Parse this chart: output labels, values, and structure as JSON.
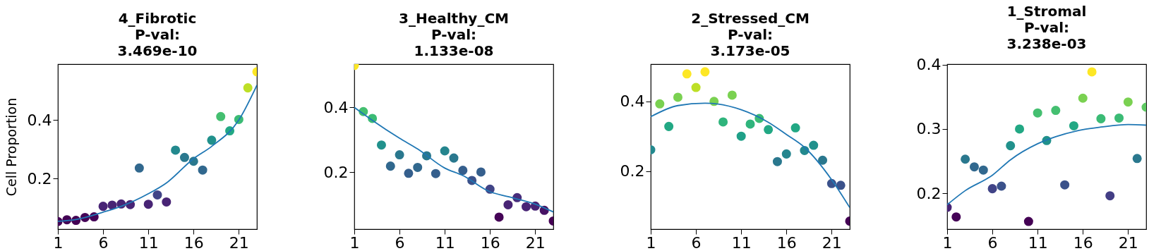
{
  "chart_data": [
    {
      "type": "scatter",
      "title": "4_Fibrotic\nP-val:\n3.469e-10",
      "ylabel": "Cell Proportion",
      "xlim": [
        1,
        23
      ],
      "xticks": [
        1,
        6,
        11,
        16,
        21
      ],
      "ylim": [
        0.027,
        0.591
      ],
      "yticks": [
        0.2,
        0.4
      ],
      "grid": false,
      "legend": false,
      "series": [
        {
          "marker": "circle",
          "x": [
            1,
            2,
            3,
            4,
            5,
            6,
            7,
            8,
            9,
            10,
            11,
            12,
            13,
            14,
            15,
            16,
            17,
            18,
            19,
            20,
            21,
            22,
            23
          ],
          "values": [
            0.053,
            0.059,
            0.057,
            0.067,
            0.069,
            0.105,
            0.109,
            0.113,
            0.111,
            0.236,
            0.112,
            0.144,
            0.12,
            0.297,
            0.272,
            0.259,
            0.229,
            0.331,
            0.412,
            0.363,
            0.402,
            0.51,
            0.565
          ],
          "colors": [
            "#440154",
            "#440154",
            "#440154",
            "#450457",
            "#450457",
            "#482475",
            "#482475",
            "#482475",
            "#482475",
            "#31688e",
            "#482475",
            "#414487",
            "#482475",
            "#23898e",
            "#2a788e",
            "#2a788e",
            "#31688e",
            "#21918c",
            "#44bf70",
            "#22a884",
            "#3bbb75",
            "#bddf26",
            "#fde725"
          ]
        },
        {
          "type": "line",
          "color": "#1f77b4",
          "x": [
            1,
            3,
            6,
            8,
            11,
            13,
            16,
            18,
            21,
            23
          ],
          "values": [
            0.054,
            0.06,
            0.085,
            0.105,
            0.148,
            0.185,
            0.268,
            0.31,
            0.4,
            0.519
          ]
        }
      ]
    },
    {
      "type": "scatter",
      "title": "3_Healthy_CM\nP-val:\n1.133e-08",
      "xlim": [
        1,
        23
      ],
      "xticks": [
        1,
        6,
        11,
        16,
        21
      ],
      "ylim": [
        0.025,
        0.533
      ],
      "yticks": [
        0.2,
        0.4
      ],
      "grid": false,
      "legend": false,
      "series": [
        {
          "marker": "circle",
          "x": [
            1,
            2,
            3,
            4,
            5,
            6,
            7,
            8,
            9,
            10,
            11,
            12,
            13,
            14,
            15,
            16,
            17,
            18,
            19,
            20,
            21,
            22,
            23
          ],
          "values": [
            0.529,
            0.387,
            0.366,
            0.284,
            0.219,
            0.254,
            0.197,
            0.215,
            0.251,
            0.196,
            0.266,
            0.244,
            0.206,
            0.175,
            0.201,
            0.148,
            0.062,
            0.1,
            0.122,
            0.094,
            0.096,
            0.083,
            0.05
          ],
          "colors": [
            "#fde725",
            "#44bf70",
            "#3bbb75",
            "#21918c",
            "#31688e",
            "#2a788e",
            "#355f8d",
            "#31688e",
            "#2a788e",
            "#355f8d",
            "#25858e",
            "#2a788e",
            "#355f8d",
            "#3b528b",
            "#355f8d",
            "#414487",
            "#450457",
            "#482475",
            "#472d7b",
            "#482475",
            "#482475",
            "#471365",
            "#440154"
          ]
        },
        {
          "type": "line",
          "color": "#1f77b4",
          "x": [
            1,
            3,
            6,
            8,
            11,
            13,
            16,
            18,
            21,
            23
          ],
          "values": [
            0.4,
            0.36,
            0.305,
            0.272,
            0.213,
            0.19,
            0.14,
            0.125,
            0.102,
            0.078
          ]
        }
      ]
    },
    {
      "type": "scatter",
      "title": "2_Stressed_CM\nP-val:\n3.173e-05",
      "xlim": [
        1,
        23
      ],
      "xticks": [
        1,
        6,
        11,
        16,
        21
      ],
      "ylim": [
        0.033,
        0.507
      ],
      "yticks": [
        0.2,
        0.4
      ],
      "grid": false,
      "legend": false,
      "series": [
        {
          "marker": "circle",
          "x": [
            1,
            2,
            3,
            4,
            5,
            6,
            7,
            8,
            9,
            10,
            11,
            12,
            13,
            14,
            15,
            16,
            17,
            18,
            19,
            20,
            21,
            22,
            23
          ],
          "values": [
            0.261,
            0.393,
            0.328,
            0.412,
            0.479,
            0.44,
            0.485,
            0.4,
            0.341,
            0.418,
            0.3,
            0.335,
            0.351,
            0.319,
            0.227,
            0.249,
            0.324,
            0.259,
            0.274,
            0.231,
            0.164,
            0.159,
            0.056
          ],
          "colors": [
            "#23898e",
            "#7ad151",
            "#22a884",
            "#7ad151",
            "#fde725",
            "#bddf26",
            "#fde725",
            "#7ad151",
            "#2fb47c",
            "#7ad151",
            "#1fa088",
            "#2fb47c",
            "#3bbb75",
            "#22a884",
            "#2a788e",
            "#25858e",
            "#22a884",
            "#23898e",
            "#21918c",
            "#2a788e",
            "#3b528b",
            "#3b528b",
            "#440154"
          ]
        },
        {
          "type": "line",
          "color": "#1f77b4",
          "x": [
            1,
            4,
            7,
            11,
            14,
            16,
            18,
            21,
            23
          ],
          "values": [
            0.356,
            0.388,
            0.395,
            0.376,
            0.34,
            0.305,
            0.268,
            0.175,
            0.095
          ]
        }
      ]
    },
    {
      "type": "scatter",
      "title": "1_Stromal\nP-val:\n3.238e-03",
      "xlim": [
        1,
        23
      ],
      "xticks": [
        1,
        6,
        11,
        16,
        21
      ],
      "ylim": [
        0.144,
        0.401
      ],
      "yticks": [
        0.2,
        0.3,
        0.4
      ],
      "grid": false,
      "legend": false,
      "series": [
        {
          "marker": "circle",
          "x": [
            1,
            2,
            3,
            4,
            5,
            6,
            7,
            8,
            9,
            10,
            11,
            12,
            13,
            14,
            15,
            16,
            17,
            18,
            19,
            20,
            21,
            22,
            23
          ],
          "values": [
            0.178,
            0.163,
            0.253,
            0.241,
            0.236,
            0.207,
            0.211,
            0.274,
            0.3,
            0.156,
            0.325,
            0.282,
            0.329,
            0.213,
            0.305,
            0.348,
            0.389,
            0.316,
            0.196,
            0.317,
            0.342,
            0.254,
            0.334
          ],
          "colors": [
            "#482475",
            "#450457",
            "#2a788e",
            "#31688e",
            "#31688e",
            "#414487",
            "#3b528b",
            "#21918c",
            "#22a884",
            "#440154",
            "#44bf70",
            "#21918c",
            "#44bf70",
            "#3b528b",
            "#22a884",
            "#7ad151",
            "#fde725",
            "#3bbb75",
            "#433e85",
            "#3bbb75",
            "#7ad151",
            "#2a788e",
            "#5ec962"
          ]
        },
        {
          "type": "line",
          "color": "#1f77b4",
          "x": [
            1,
            3,
            6,
            8,
            11,
            13,
            16,
            18,
            21,
            23
          ],
          "values": [
            0.182,
            0.204,
            0.228,
            0.252,
            0.277,
            0.288,
            0.299,
            0.303,
            0.307,
            0.306
          ]
        }
      ]
    }
  ]
}
